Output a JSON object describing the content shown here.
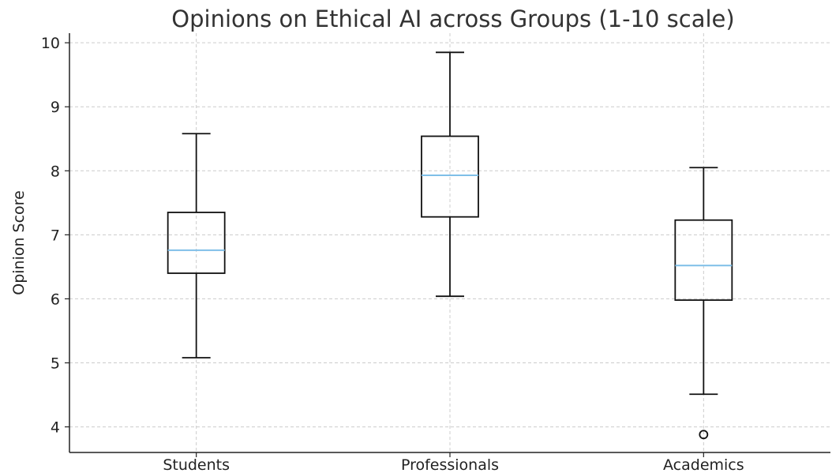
{
  "chart_data": {
    "type": "box",
    "title": "Opinions on Ethical AI across Groups (1-10 scale)",
    "xlabel": "",
    "ylabel": "Opinion Score",
    "ylim": [
      3.6,
      10.15
    ],
    "yticks": [
      4,
      5,
      6,
      7,
      8,
      9,
      10
    ],
    "grid": true,
    "median_color": "#7fbfe8",
    "box_color": "#111111",
    "categories": [
      "Students",
      "Professionals",
      "Academics"
    ],
    "boxes": [
      {
        "whisker_low": 5.08,
        "q1": 6.4,
        "median": 6.76,
        "q3": 7.35,
        "whisker_high": 8.58,
        "outliers": []
      },
      {
        "whisker_low": 6.04,
        "q1": 7.28,
        "median": 7.93,
        "q3": 8.54,
        "whisker_high": 9.85,
        "outliers": []
      },
      {
        "whisker_low": 4.51,
        "q1": 5.98,
        "median": 6.52,
        "q3": 7.23,
        "whisker_high": 8.05,
        "outliers": [
          3.88
        ]
      }
    ]
  }
}
